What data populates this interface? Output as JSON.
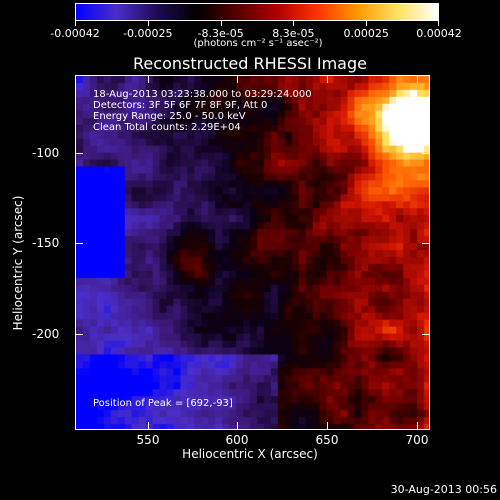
{
  "colorbar": {
    "labels": [
      "-0.00042",
      "-0.00025",
      "-8.3e-05",
      "8.3e-05",
      "0.00025",
      "0.00042"
    ],
    "units": "(photons cm⁻² s⁻¹ asec⁻²)",
    "colors": [
      "#0000ff",
      "#4b2ec8",
      "#1e0b55",
      "#000000",
      "#550000",
      "#b00000",
      "#ff3300",
      "#ff9900",
      "#ffe060",
      "#ffffff"
    ]
  },
  "title": "Reconstructed RHESSI Image",
  "info": {
    "time_range": "18-Aug-2013 03:23:38.000 to 03:29:24.000",
    "detectors": "Detectors: 3F 5F 6F 7F 8F 9F, Att 0",
    "energy": "Energy Range: 25.0 - 50.0 keV",
    "clean": "Clean     Total counts: 2.29E+04",
    "peak": "Position of Peak = [692,-93]"
  },
  "x_axis": {
    "label": "Heliocentric X (arcsec)",
    "ticks": [
      "550",
      "600",
      "650",
      "700"
    ]
  },
  "y_axis": {
    "label": "Heliocentric Y (arcsec)",
    "ticks": [
      "-100",
      "-150",
      "-200"
    ]
  },
  "footer_date": "30-Aug-2013 00:56"
}
